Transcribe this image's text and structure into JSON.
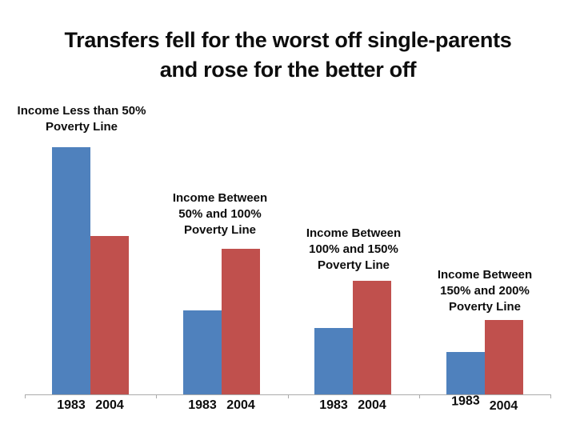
{
  "title": {
    "line1": "Transfers fell for the worst off single-parents",
    "line2": "and rose for the better off"
  },
  "chart_data": {
    "type": "bar",
    "title": "Transfers fell for the worst off single-parents and rose for the better off",
    "categories": [
      "Income Less than 50% Poverty Line",
      "Income Between 50% and 100% Poverty Line",
      "Income Between 100% and 150% Poverty Line",
      "Income Between 150% and 200% Poverty Line"
    ],
    "category_label_lines": [
      [
        "Income Less than 50%",
        "Poverty Line"
      ],
      [
        "Income Between",
        "50% and 100%",
        "Poverty Line"
      ],
      [
        "Income Between",
        "100% and 150%",
        "Poverty Line"
      ],
      [
        "Income Between",
        "150% and 200%",
        "Poverty Line"
      ]
    ],
    "series": [
      {
        "name": "1983",
        "color": "#4F81BD",
        "values": [
          100,
          34,
          27,
          17
        ]
      },
      {
        "name": "2004",
        "color": "#C0504D",
        "values": [
          64,
          59,
          46,
          30
        ]
      }
    ],
    "x_tick_labels_per_group": [
      "1983",
      "2004"
    ],
    "units": "relative units (no value axis shown in chart; tallest bar normalized to 100)",
    "ylim": [
      0,
      105
    ],
    "xlabel": "",
    "ylabel": "",
    "legend": "none",
    "grid": "off",
    "axis_color": "#ABABAB",
    "background_color": "#FFFFFF",
    "text_color": "#000000"
  }
}
